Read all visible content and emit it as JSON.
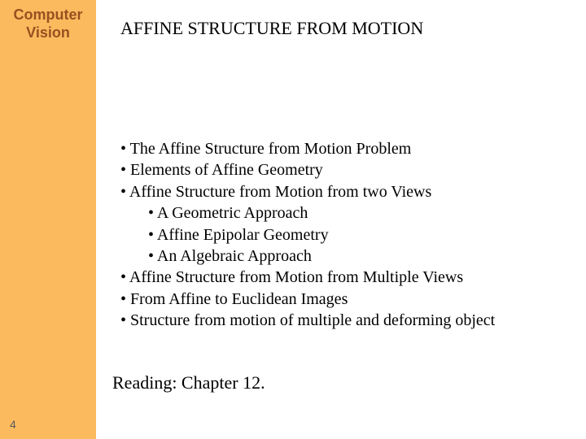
{
  "sidebar": {
    "title_line1": "Computer",
    "title_line2": "Vision",
    "page_number": "4",
    "bg_color": "#fbba5e",
    "title_color": "#9a4f20"
  },
  "slide": {
    "title": "AFFINE STRUCTURE FROM MOTION",
    "bullets": [
      {
        "level": 1,
        "text": "The Affine Structure from Motion Problem"
      },
      {
        "level": 1,
        "text": "Elements of Affine Geometry"
      },
      {
        "level": 1,
        "text": "Affine Structure from Motion from two Views"
      },
      {
        "level": 2,
        "text": "A Geometric Approach"
      },
      {
        "level": 2,
        "text": "Affine Epipolar Geometry"
      },
      {
        "level": 2,
        "text": "An Algebraic Approach"
      },
      {
        "level": 1,
        "text": "Affine Structure from Motion from Multiple Views"
      },
      {
        "level": 1,
        "text": "From Affine to Euclidean Images"
      },
      {
        "level": 1,
        "text": "Structure from motion of multiple and deforming object"
      }
    ],
    "reading": "Reading: Chapter 12."
  },
  "style": {
    "body_font": "Times New Roman",
    "sidebar_font": "Verdana",
    "title_fontsize": 22,
    "bullet_fontsize": 20,
    "sidebar_title_fontsize": 18,
    "text_color": "#000000",
    "background_color": "#ffffff"
  }
}
